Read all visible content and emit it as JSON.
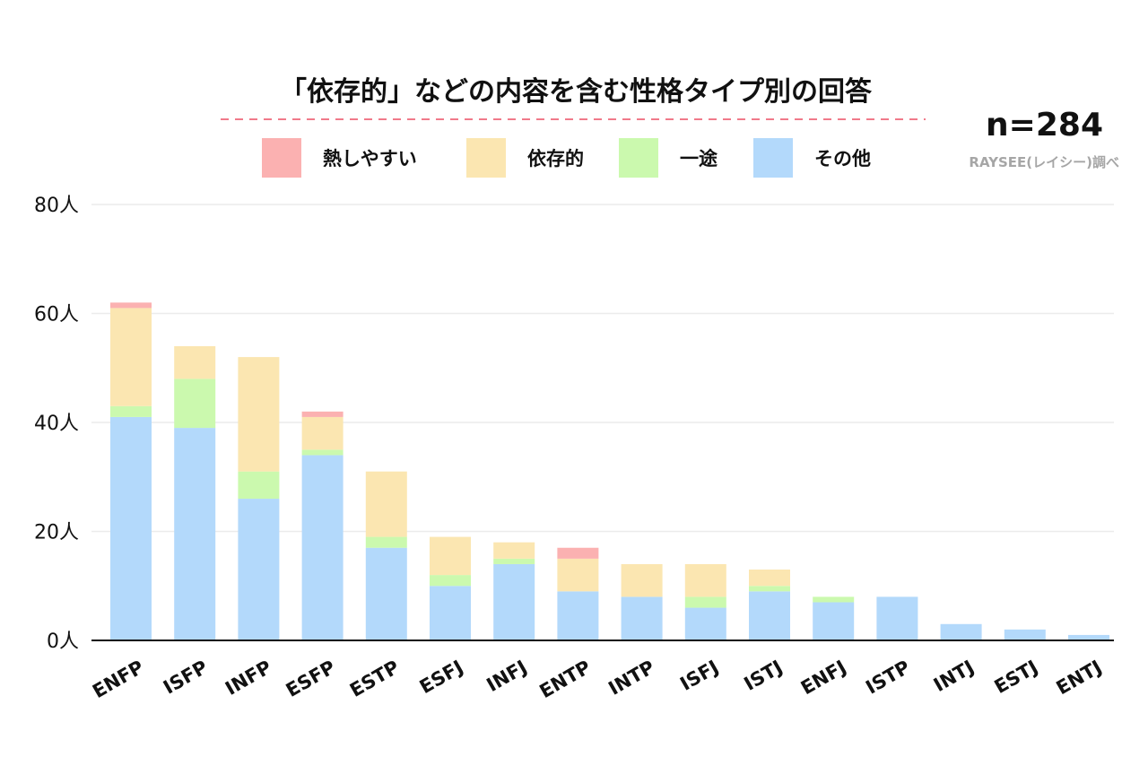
{
  "chart_data": {
    "type": "bar",
    "stacked": true,
    "title": "「依存的」などの内容を含む性格タイプ別の回答",
    "sample_label": "n=284",
    "source": "RAYSEE(レイシー)調べ",
    "categories": [
      "ENFP",
      "ISFP",
      "INFP",
      "ESFP",
      "ESTP",
      "ESFJ",
      "INFJ",
      "ENTP",
      "INTP",
      "ISFJ",
      "ISTJ",
      "ENFJ",
      "ISTP",
      "INTJ",
      "ESTJ",
      "ENTJ"
    ],
    "series": [
      {
        "name": "その他",
        "color": "#b3d9fb",
        "values": [
          41,
          39,
          26,
          34,
          17,
          10,
          14,
          9,
          8,
          6,
          9,
          7,
          8,
          3,
          2,
          1
        ]
      },
      {
        "name": "一途",
        "color": "#cbf9ae",
        "values": [
          2,
          9,
          5,
          1,
          2,
          2,
          1,
          0,
          0,
          2,
          1,
          1,
          0,
          0,
          0,
          0
        ]
      },
      {
        "name": "依存的",
        "color": "#fbe6b1",
        "values": [
          18,
          6,
          21,
          6,
          12,
          7,
          3,
          6,
          6,
          6,
          3,
          0,
          0,
          0,
          0,
          0
        ]
      },
      {
        "name": "熱しやすい",
        "color": "#fbb1b1",
        "values": [
          1,
          0,
          0,
          1,
          0,
          0,
          0,
          2,
          0,
          0,
          0,
          0,
          0,
          0,
          0,
          0
        ]
      }
    ],
    "legend_order": [
      "熱しやすい",
      "依存的",
      "一途",
      "その他"
    ],
    "y_ticks": [
      "0人",
      "20人",
      "40人",
      "60人",
      "80人"
    ],
    "y_tick_values": [
      0,
      20,
      40,
      60,
      80
    ],
    "ylim": [
      0,
      80
    ],
    "grid": true,
    "legend_position": "top",
    "title_underline_color": "#f07a8a"
  }
}
